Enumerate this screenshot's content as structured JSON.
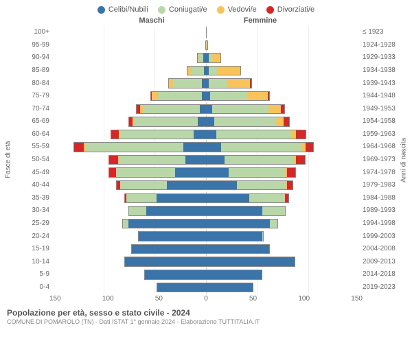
{
  "legend": [
    {
      "label": "Celibi/Nubili",
      "color": "#3b74a8"
    },
    {
      "label": "Coniugati/e",
      "color": "#b9d7a8"
    },
    {
      "label": "Vedovi/e",
      "color": "#f8c35a"
    },
    {
      "label": "Divorziati/e",
      "color": "#d62728"
    }
  ],
  "genders": {
    "male": "Maschi",
    "female": "Femmine"
  },
  "axis_left_title": "Fasce di età",
  "axis_right_title": "Anni di nascita",
  "x_axis_max": 150,
  "x_ticks": [
    "150",
    "100",
    "50",
    "0",
    "50",
    "100",
    "150"
  ],
  "bar_border": "#888888",
  "colors": {
    "single": "#3b74a8",
    "married": "#b9d7a8",
    "widowed": "#f8c35a",
    "divorced": "#d62728"
  },
  "age_bins": [
    {
      "age": "100+",
      "birth": "≤ 1923",
      "m": [
        0,
        0,
        0,
        0
      ],
      "f": [
        0,
        0,
        1,
        0
      ]
    },
    {
      "age": "95-99",
      "birth": "1924-1928",
      "m": [
        0,
        0,
        1,
        0
      ],
      "f": [
        0,
        0,
        2,
        0
      ]
    },
    {
      "age": "90-94",
      "birth": "1929-1933",
      "m": [
        3,
        4,
        2,
        0
      ],
      "f": [
        3,
        3,
        9,
        0
      ]
    },
    {
      "age": "85-89",
      "birth": "1934-1938",
      "m": [
        2,
        13,
        4,
        0
      ],
      "f": [
        3,
        8,
        23,
        0
      ]
    },
    {
      "age": "80-84",
      "birth": "1939-1943",
      "m": [
        4,
        28,
        4,
        1
      ],
      "f": [
        3,
        18,
        22,
        2
      ]
    },
    {
      "age": "75-79",
      "birth": "1944-1948",
      "m": [
        4,
        43,
        6,
        1
      ],
      "f": [
        4,
        36,
        20,
        2
      ]
    },
    {
      "age": "70-74",
      "birth": "1949-1953",
      "m": [
        6,
        55,
        3,
        4
      ],
      "f": [
        6,
        55,
        12,
        4
      ]
    },
    {
      "age": "65-69",
      "birth": "1954-1958",
      "m": [
        8,
        62,
        2,
        4
      ],
      "f": [
        8,
        60,
        8,
        6
      ]
    },
    {
      "age": "60-64",
      "birth": "1959-1963",
      "m": [
        12,
        72,
        1,
        8
      ],
      "f": [
        10,
        73,
        5,
        10
      ]
    },
    {
      "age": "55-59",
      "birth": "1964-1968",
      "m": [
        22,
        95,
        2,
        10
      ],
      "f": [
        15,
        78,
        4,
        8
      ]
    },
    {
      "age": "50-54",
      "birth": "1969-1973",
      "m": [
        20,
        65,
        1,
        9
      ],
      "f": [
        18,
        68,
        2,
        9
      ]
    },
    {
      "age": "45-49",
      "birth": "1974-1978",
      "m": [
        30,
        58,
        0,
        7
      ],
      "f": [
        22,
        55,
        2,
        9
      ]
    },
    {
      "age": "40-44",
      "birth": "1979-1983",
      "m": [
        38,
        46,
        0,
        4
      ],
      "f": [
        30,
        48,
        1,
        6
      ]
    },
    {
      "age": "35-39",
      "birth": "1984-1988",
      "m": [
        48,
        30,
        0,
        2
      ],
      "f": [
        42,
        35,
        0,
        4
      ]
    },
    {
      "age": "30-34",
      "birth": "1989-1993",
      "m": [
        58,
        18,
        0,
        0
      ],
      "f": [
        55,
        22,
        0,
        1
      ]
    },
    {
      "age": "25-29",
      "birth": "1994-1998",
      "m": [
        76,
        6,
        0,
        0
      ],
      "f": [
        62,
        8,
        0,
        0
      ]
    },
    {
      "age": "20-24",
      "birth": "1999-2003",
      "m": [
        66,
        0,
        0,
        0
      ],
      "f": [
        55,
        1,
        0,
        0
      ]
    },
    {
      "age": "15-19",
      "birth": "2004-2008",
      "m": [
        73,
        0,
        0,
        0
      ],
      "f": [
        62,
        0,
        0,
        0
      ]
    },
    {
      "age": "10-14",
      "birth": "2009-2013",
      "m": [
        80,
        0,
        0,
        0
      ],
      "f": [
        87,
        0,
        0,
        0
      ]
    },
    {
      "age": "5-9",
      "birth": "2014-2018",
      "m": [
        60,
        0,
        0,
        0
      ],
      "f": [
        55,
        0,
        0,
        0
      ]
    },
    {
      "age": "0-4",
      "birth": "2019-2023",
      "m": [
        48,
        0,
        0,
        0
      ],
      "f": [
        46,
        0,
        0,
        0
      ]
    }
  ],
  "footer": {
    "title": "Popolazione per età, sesso e stato civile - 2024",
    "subtitle": "COMUNE DI POMAROLO (TN) - Dati ISTAT 1° gennaio 2024 - Elaborazione TUTTITALIA.IT"
  }
}
